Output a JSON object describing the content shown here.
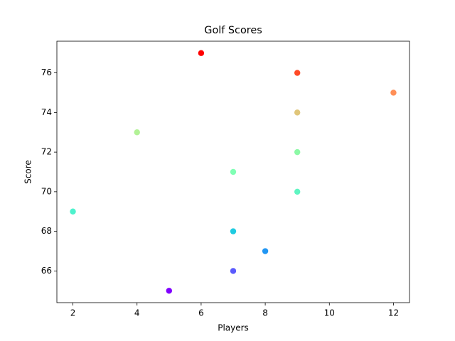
{
  "chart_data": {
    "type": "scatter",
    "title": "Golf Scores",
    "x_label": "Players",
    "y_label": "Score",
    "x": [
      6,
      9,
      12,
      9,
      4,
      9,
      7,
      9,
      2,
      7,
      8,
      7,
      5
    ],
    "values": [
      77,
      76,
      75,
      74,
      73,
      72,
      71,
      70,
      69,
      68,
      67,
      66,
      65
    ],
    "colors": [
      "#ff0000",
      "#ff4a26",
      "#ff8f57",
      "#e0c67a",
      "#b2f296",
      "#8cf9a6",
      "#80ffb4",
      "#5ff5c2",
      "#4df2cd",
      "#1ecbe0",
      "#2196f3",
      "#5a5afd",
      "#8000ff"
    ],
    "xlim": [
      1.5,
      12.5
    ],
    "xticks": [
      2,
      4,
      6,
      8,
      10,
      12
    ],
    "ylim": [
      64.4,
      77.6
    ],
    "yticks": [
      66,
      68,
      70,
      72,
      74,
      76
    ]
  }
}
